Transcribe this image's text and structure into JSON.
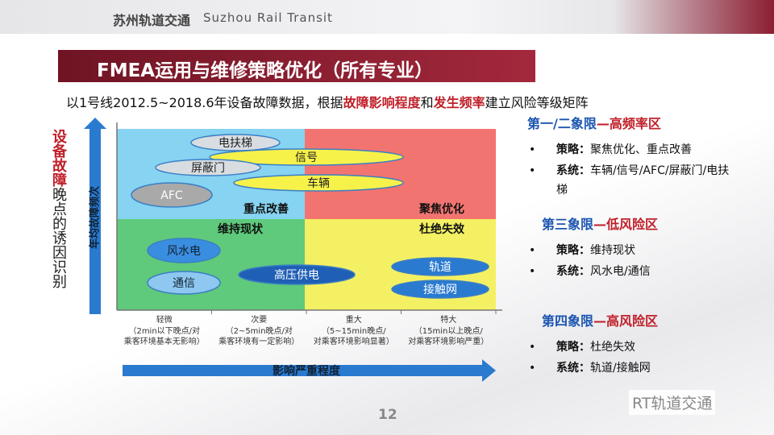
{
  "header": {
    "logo_cn": "苏州轨道交通",
    "logo_en": "Suzhou Rail Transit"
  },
  "title": "FMEA运用与维修策略优化（所有专业）",
  "subtitle": [
    "以1号线2012.5~2018.6年设备故障数据，根据",
    "故障影响程度",
    "和",
    "发生频率",
    "建立风险等级矩阵"
  ],
  "side_label": {
    "highlight": "设备故障",
    "rest": "晚点的诱因识别"
  },
  "matrix": {
    "y_axis_label": "年均故障频次",
    "x_axis_label": "影响严重程度",
    "quadrants": [
      "重点改善",
      "聚焦优化",
      "维持现状",
      "杜绝失效"
    ],
    "items": [
      "电扶梯",
      "信号",
      "屏蔽门",
      "车辆",
      "AFC",
      "风水电",
      "通信",
      "高压供电",
      "轨道",
      "接触网"
    ],
    "x_categories": [
      {
        "name": "轻微",
        "desc": "（2min以下晚点/对乘客环境基本无影响）"
      },
      {
        "name": "次要",
        "desc": "（2~5min晚点/对乘客环境有一定影响）"
      },
      {
        "name": "重大",
        "desc": "（5~15min晚点/对乘客环境影响显著）"
      },
      {
        "name": "特大",
        "desc": "（15min以上晚点/对乘客环境影响严重）"
      }
    ]
  },
  "panel": [
    {
      "quadrant": "第一/二象限",
      "zone": "—高频率区",
      "items": [
        {
          "label": "策略：",
          "text": "聚焦优化、重点改善"
        },
        {
          "label": "系统：",
          "text": "车辆/信号/AFC/屏蔽门/电扶梯"
        }
      ]
    },
    {
      "quadrant": "第三象限",
      "zone": "—低风险区",
      "items": [
        {
          "label": "策略：",
          "text": "维持现状"
        },
        {
          "label": "系统：",
          "text": "风水电/通信"
        }
      ]
    },
    {
      "quadrant": "第四象限",
      "zone": "—高风险区",
      "items": [
        {
          "label": "策略：",
          "text": "杜绝失效"
        },
        {
          "label": "系统：",
          "text": "轨道/接触网"
        }
      ]
    }
  ],
  "page_number": "12",
  "watermark": "RT轨道交通"
}
